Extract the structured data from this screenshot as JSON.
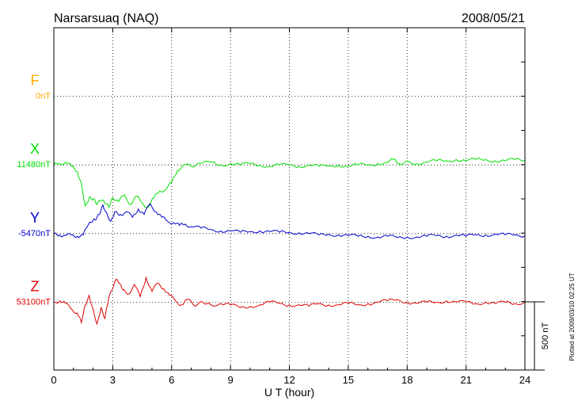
{
  "chart_data": {
    "type": "line",
    "title": "Narsarsuaq (NAQ)",
    "date": "2008/05/21",
    "xlabel": "U T (hour)",
    "xlim": [
      0,
      24
    ],
    "xticks": [
      "0",
      "3",
      "6",
      "9",
      "12",
      "15",
      "18",
      "21",
      "24"
    ],
    "scale_label": "500 nT",
    "footer": "Plotted at 2009/03/10 02:25 UT",
    "series": [
      {
        "name": "F",
        "baseline_label": "0nT",
        "color": "#ffaa00",
        "x": [],
        "y": []
      },
      {
        "name": "X",
        "baseline_label": "11480nT",
        "color": "#00e000",
        "x": [
          0,
          0.3,
          0.6,
          0.9,
          1.2,
          1.4,
          1.6,
          1.8,
          2.0,
          2.2,
          2.4,
          2.6,
          2.8,
          3.0,
          3.3,
          3.6,
          3.9,
          4.2,
          4.5,
          4.8,
          5.1,
          5.4,
          5.7,
          6.0,
          6.3,
          6.6,
          7.0,
          7.5,
          8.0,
          8.5,
          9.0,
          9.5,
          10.0,
          10.5,
          11.0,
          11.5,
          12.0,
          12.5,
          13.0,
          13.5,
          14.0,
          14.5,
          15.0,
          15.5,
          16.0,
          16.5,
          17.0,
          17.3,
          17.6,
          18.0,
          18.5,
          19.0,
          19.5,
          20.0,
          20.5,
          21.0,
          21.5,
          22.0,
          22.5,
          23.0,
          23.5,
          24.0
        ],
        "y": [
          11480,
          11490,
          11500,
          11470,
          11430,
          11350,
          11180,
          11240,
          11230,
          11190,
          11220,
          11200,
          11170,
          11240,
          11210,
          11260,
          11190,
          11250,
          11200,
          11170,
          11240,
          11290,
          11300,
          11350,
          11440,
          11480,
          11470,
          11490,
          11500,
          11480,
          11490,
          11480,
          11490,
          11480,
          11470,
          11480,
          11480,
          11470,
          11480,
          11470,
          11470,
          11480,
          11470,
          11480,
          11480,
          11490,
          11500,
          11520,
          11490,
          11510,
          11490,
          11500,
          11510,
          11510,
          11520,
          11510,
          11520,
          11520,
          11510,
          11510,
          11520,
          11515
        ]
      },
      {
        "name": "Y",
        "baseline_label": "-5470nT",
        "color": "#0000cc",
        "x": [
          0,
          0.3,
          0.6,
          0.9,
          1.2,
          1.5,
          1.7,
          1.9,
          2.1,
          2.3,
          2.5,
          2.7,
          2.9,
          3.1,
          3.4,
          3.7,
          4.0,
          4.3,
          4.6,
          4.9,
          5.2,
          5.5,
          5.8,
          6.1,
          6.4,
          6.7,
          7.0,
          7.5,
          8.0,
          8.5,
          9.0,
          9.5,
          10.0,
          10.5,
          11.0,
          11.5,
          12.0,
          12.5,
          13.0,
          13.5,
          14.0,
          14.5,
          15.0,
          15.5,
          16.0,
          16.5,
          17.0,
          17.5,
          18.0,
          18.5,
          19.0,
          19.5,
          20.0,
          20.5,
          21.0,
          21.5,
          22.0,
          22.5,
          23.0,
          23.5,
          24.0
        ],
        "y": [
          -5470,
          -5480,
          -5485,
          -5480,
          -5490,
          -5480,
          -5420,
          -5390,
          -5370,
          -5330,
          -5260,
          -5320,
          -5380,
          -5310,
          -5330,
          -5310,
          -5350,
          -5290,
          -5330,
          -5250,
          -5310,
          -5350,
          -5380,
          -5390,
          -5410,
          -5400,
          -5420,
          -5430,
          -5440,
          -5450,
          -5450,
          -5460,
          -5455,
          -5450,
          -5455,
          -5460,
          -5460,
          -5465,
          -5470,
          -5480,
          -5475,
          -5480,
          -5485,
          -5490,
          -5490,
          -5495,
          -5490,
          -5500,
          -5495,
          -5495,
          -5490,
          -5485,
          -5490,
          -5480,
          -5490,
          -5480,
          -5480,
          -5475,
          -5480,
          -5480,
          -5485
        ]
      },
      {
        "name": "Z",
        "baseline_label": "53100nT",
        "color": "#e00000",
        "x": [
          0,
          0.3,
          0.6,
          0.9,
          1.2,
          1.4,
          1.6,
          1.8,
          2.0,
          2.2,
          2.4,
          2.6,
          2.8,
          3.0,
          3.2,
          3.5,
          3.8,
          4.1,
          4.4,
          4.7,
          5.0,
          5.3,
          5.6,
          5.9,
          6.2,
          6.5,
          6.8,
          7.2,
          7.6,
          8.0,
          8.5,
          9.0,
          9.5,
          10.0,
          10.5,
          11.0,
          11.5,
          12.0,
          12.5,
          13.0,
          13.5,
          14.0,
          14.5,
          15.0,
          15.5,
          16.0,
          16.5,
          17.0,
          17.5,
          18.0,
          18.5,
          19.0,
          19.5,
          20.0,
          20.5,
          21.0,
          21.5,
          22.0,
          22.5,
          23.0,
          23.5,
          24.0
        ],
        "y": [
          53100,
          53110,
          53090,
          53050,
          53020,
          52950,
          53080,
          53150,
          53050,
          52940,
          53060,
          52980,
          53130,
          53200,
          53270,
          53190,
          53160,
          53230,
          53140,
          53280,
          53180,
          53240,
          53200,
          53150,
          53110,
          53080,
          53120,
          53070,
          53100,
          53080,
          53090,
          53080,
          53060,
          53070,
          53080,
          53100,
          53090,
          53080,
          53080,
          53070,
          53090,
          53080,
          53080,
          53090,
          53080,
          53090,
          53100,
          53110,
          53120,
          53100,
          53090,
          53100,
          53100,
          53110,
          53100,
          53100,
          53090,
          53100,
          53090,
          53100,
          53090,
          53100
        ]
      }
    ],
    "grid": true
  }
}
